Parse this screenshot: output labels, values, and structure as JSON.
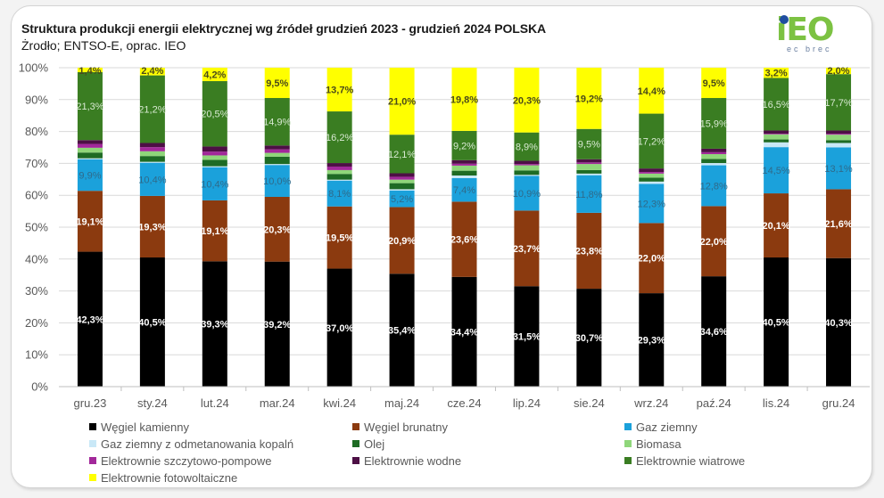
{
  "header": {
    "title": "Struktura produkcji energii elektrycznej wg źródeł grudzień 2023 - grudzień 2024 POLSKA",
    "subtitle": "Żrodło; ENTSO-E, oprac. IEO",
    "logo_text": "iEO",
    "logo_subtext": "ec brec"
  },
  "chart_data": {
    "type": "bar",
    "stacked": true,
    "normalized": true,
    "title": "Struktura produkcji energii elektrycznej wg źródeł grudzień 2023 - grudzień 2024 POLSKA",
    "subtitle": "Żrodło; ENTSO-E, oprac. IEO",
    "xlabel": "",
    "ylabel": "",
    "ylim": [
      0,
      100
    ],
    "yticks": [
      "0%",
      "10%",
      "20%",
      "30%",
      "40%",
      "50%",
      "60%",
      "70%",
      "80%",
      "90%",
      "100%"
    ],
    "grid": true,
    "legend_position": "bottom",
    "categories": [
      "gru.23",
      "sty.24",
      "lut.24",
      "mar.24",
      "kwi.24",
      "maj.24",
      "cze.24",
      "lip.24",
      "sie.24",
      "wrz.24",
      "paź.24",
      "lis.24",
      "gru.24"
    ],
    "series": [
      {
        "name": "Węgiel kamienny",
        "color": "#000000",
        "label_color": "#ffffff",
        "labeled": true,
        "values": [
          42.3,
          40.5,
          39.3,
          39.2,
          37.0,
          35.4,
          34.4,
          31.5,
          30.7,
          29.3,
          34.6,
          40.5,
          40.3
        ]
      },
      {
        "name": "Węgiel brunatny",
        "color": "#8b3a0f",
        "label_color": "#ffffff",
        "labeled": true,
        "values": [
          19.1,
          19.3,
          19.1,
          20.3,
          19.5,
          20.9,
          23.6,
          23.7,
          23.8,
          22.0,
          22.0,
          20.1,
          21.6
        ]
      },
      {
        "name": "Gaz ziemny",
        "color": "#1ba1db",
        "label_color": "#2f6a8a",
        "labeled": true,
        "values": [
          9.9,
          10.4,
          10.4,
          10.0,
          8.1,
          5.2,
          7.4,
          10.9,
          11.8,
          12.3,
          12.8,
          14.5,
          13.1
        ]
      },
      {
        "name": "Gaz ziemny z odmetanowania kopalń",
        "color": "#c9e8f7",
        "labeled": false,
        "values": [
          0.3,
          0.3,
          0.3,
          0.3,
          0.3,
          0.4,
          0.8,
          0.3,
          0.5,
          0.7,
          0.7,
          1.5,
          1.4
        ]
      },
      {
        "name": "Olej",
        "color": "#1e6b24",
        "labeled": false,
        "values": [
          1.8,
          1.8,
          2.0,
          2.3,
          1.8,
          1.9,
          1.5,
          1.4,
          1.1,
          1.2,
          1.3,
          0.9,
          0.9
        ]
      },
      {
        "name": "Biomasa",
        "color": "#8fd67a",
        "labeled": false,
        "values": [
          1.5,
          1.5,
          1.4,
          1.2,
          1.2,
          1.1,
          1.6,
          1.6,
          1.9,
          1.3,
          1.5,
          1.6,
          1.7
        ]
      },
      {
        "name": "Elektrownie szczytowo-pompowe",
        "color": "#a2289a",
        "labeled": false,
        "values": [
          1.2,
          1.3,
          1.2,
          1.1,
          1.1,
          0.9,
          0.6,
          0.4,
          0.5,
          0.5,
          0.6,
          0.2,
          0.3
        ]
      },
      {
        "name": "Elektrownie wodne",
        "color": "#4d0f45",
        "labeled": false,
        "values": [
          1.2,
          1.3,
          1.6,
          1.2,
          1.1,
          1.1,
          1.1,
          1.0,
          1.0,
          1.1,
          1.1,
          1.0,
          1.0
        ]
      },
      {
        "name": "Elektrownie wiatrowe",
        "color": "#3a7d22",
        "label_color": "#d9ead3",
        "labeled": true,
        "values": [
          21.3,
          21.2,
          20.5,
          14.9,
          16.2,
          12.1,
          9.2,
          8.9,
          9.5,
          17.2,
          15.9,
          16.5,
          17.7
        ]
      },
      {
        "name": "Elektrownie fotowoltaiczne",
        "color": "#ffff00",
        "label_color": "#4a4a1a",
        "labeled": true,
        "values": [
          1.4,
          2.4,
          4.2,
          9.5,
          13.7,
          21.0,
          19.8,
          20.3,
          19.2,
          14.4,
          9.5,
          3.2,
          2.0
        ]
      }
    ],
    "data_labels": {
      "Węgiel kamienny": [
        "42,3%",
        "40,5%",
        "39,3%",
        "39,2%",
        "37,0%",
        "35,4%",
        "34,4%",
        "31,5%",
        "30,7%",
        "29,3%",
        "34,6%",
        "40,5%",
        "40,3%"
      ],
      "Węgiel brunatny": [
        "19,1%",
        "19,3%",
        "19,1%",
        "20,3%",
        "19,5%",
        "20,9%",
        "23,6%",
        "23,7%",
        "23,8%",
        "22,0%",
        "22,0%",
        "20,1%",
        "21,6%"
      ],
      "Gaz ziemny": [
        "9,9%",
        "10,4%",
        "10,4%",
        "10,0%",
        "8,1%",
        "5,2%",
        "7,4%",
        "10,9%",
        "11,8%",
        "12,3%",
        "12,8%",
        "14,5%",
        "13,1%"
      ],
      "Elektrownie wiatrowe": [
        "21,3%",
        "21,2%",
        "20,5%",
        "14,9%",
        "16,2%",
        "12,1%",
        "9,2%",
        "8,9%",
        "9,5%",
        "17,2%",
        "15,9%",
        "16,5%",
        "17,7%"
      ],
      "Elektrownie fotowoltaiczne": [
        "1,4%",
        "2,4%",
        "4,2%",
        "9,5%",
        "13,7%",
        "21,0%",
        "19,8%",
        "20,3%",
        "19,2%",
        "14,4%",
        "9,5%",
        "3,2%",
        "2,0%"
      ]
    }
  },
  "legend": {
    "items": [
      {
        "label": "Węgiel kamienny",
        "color": "#000000"
      },
      {
        "label": "Węgiel brunatny",
        "color": "#8b3a0f"
      },
      {
        "label": "Gaz ziemny",
        "color": "#1ba1db"
      },
      {
        "label": "Gaz ziemny z odmetanowania kopalń",
        "color": "#c9e8f7"
      },
      {
        "label": "Olej",
        "color": "#1e6b24"
      },
      {
        "label": "Biomasa",
        "color": "#8fd67a"
      },
      {
        "label": "Elektrownie szczytowo-pompowe",
        "color": "#a2289a"
      },
      {
        "label": "Elektrownie wodne",
        "color": "#4d0f45"
      },
      {
        "label": "Elektrownie wiatrowe",
        "color": "#3a7d22"
      },
      {
        "label": "Elektrownie fotowoltaiczne",
        "color": "#ffff00"
      }
    ]
  }
}
